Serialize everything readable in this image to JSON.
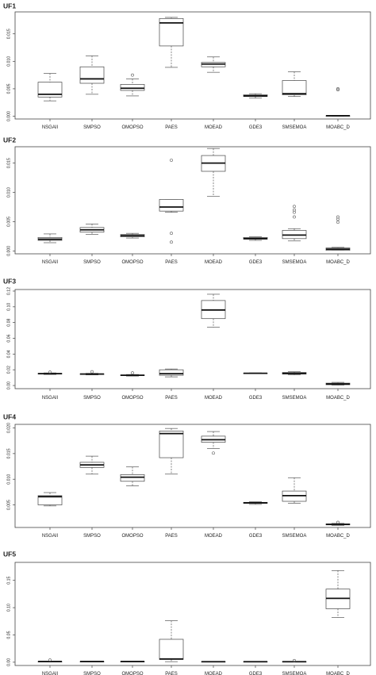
{
  "chart_data": [
    {
      "type": "boxplot",
      "title": "UF1",
      "categories": [
        "NSGAII",
        "SMPSO",
        "OMOPSO",
        "PAES",
        "MOEAD",
        "GDE3",
        "SMSEMOA",
        "MOABC_D"
      ],
      "ylim": [
        -0.0005,
        0.019
      ],
      "yticks": [
        0.0,
        0.005,
        0.01,
        0.015
      ],
      "ytick_labels": [
        "0.000",
        "0.005",
        "0.010",
        "0.015"
      ],
      "boxes": [
        {
          "min": 0.0028,
          "q1": 0.0035,
          "median": 0.004,
          "q3": 0.0062,
          "max": 0.0078,
          "outliers": []
        },
        {
          "min": 0.004,
          "q1": 0.006,
          "median": 0.0068,
          "q3": 0.009,
          "max": 0.011,
          "outliers": []
        },
        {
          "min": 0.0037,
          "q1": 0.0047,
          "median": 0.0051,
          "q3": 0.0058,
          "max": 0.0068,
          "outliers": [
            0.0075
          ]
        },
        {
          "min": 0.0089,
          "q1": 0.0128,
          "median": 0.017,
          "q3": 0.0178,
          "max": 0.018,
          "outliers": []
        },
        {
          "min": 0.008,
          "q1": 0.009,
          "median": 0.0095,
          "q3": 0.0098,
          "max": 0.0108,
          "outliers": []
        },
        {
          "min": 0.0033,
          "q1": 0.0036,
          "median": 0.0037,
          "q3": 0.0039,
          "max": 0.0041,
          "outliers": []
        },
        {
          "min": 0.0036,
          "q1": 0.0039,
          "median": 0.0041,
          "q3": 0.0065,
          "max": 0.0081,
          "outliers": []
        },
        {
          "min": 0.0,
          "q1": 0.0,
          "median": 0.0001,
          "q3": 0.0001,
          "max": 0.0001,
          "outliers": [
            0.0048,
            0.005
          ]
        }
      ]
    },
    {
      "type": "boxplot",
      "title": "UF2",
      "categories": [
        "NSGAII",
        "SMPSO",
        "OMOPSO",
        "PAES",
        "MOEAD",
        "GDE3",
        "SMSEMOA",
        "MOABC_D"
      ],
      "ylim": [
        -0.0005,
        0.0178
      ],
      "yticks": [
        0.0,
        0.005,
        0.01,
        0.015
      ],
      "ytick_labels": [
        "0.000",
        "0.005",
        "0.010",
        "0.015"
      ],
      "boxes": [
        {
          "min": 0.0014,
          "q1": 0.0018,
          "median": 0.002,
          "q3": 0.0023,
          "max": 0.0029,
          "outliers": []
        },
        {
          "min": 0.0028,
          "q1": 0.0032,
          "median": 0.0036,
          "q3": 0.004,
          "max": 0.0046,
          "outliers": []
        },
        {
          "min": 0.0022,
          "q1": 0.0024,
          "median": 0.0026,
          "q3": 0.0028,
          "max": 0.003,
          "outliers": []
        },
        {
          "min": 0.0066,
          "q1": 0.0068,
          "median": 0.0075,
          "q3": 0.0088,
          "max": 0.0088,
          "outliers": [
            0.0155,
            0.003,
            0.0015
          ]
        },
        {
          "min": 0.0093,
          "q1": 0.0136,
          "median": 0.015,
          "q3": 0.0163,
          "max": 0.0175,
          "outliers": []
        },
        {
          "min": 0.0018,
          "q1": 0.002,
          "median": 0.0021,
          "q3": 0.0023,
          "max": 0.0024,
          "outliers": []
        },
        {
          "min": 0.0017,
          "q1": 0.0021,
          "median": 0.0027,
          "q3": 0.0035,
          "max": 0.0038,
          "outliers": [
            0.0058,
            0.0066,
            0.007,
            0.0076
          ]
        },
        {
          "min": 0.0001,
          "q1": 0.0001,
          "median": 0.0003,
          "q3": 0.0005,
          "max": 0.0006,
          "outliers": [
            0.0049,
            0.0054,
            0.0058
          ]
        }
      ]
    },
    {
      "type": "boxplot",
      "title": "UF3",
      "categories": [
        "NSGAII",
        "SMPSO",
        "OMOPSO",
        "PAES",
        "MOEAD",
        "GDE3",
        "SMSEMOA",
        "MOABC_D"
      ],
      "ylim": [
        -0.004,
        0.122
      ],
      "yticks": [
        0.0,
        0.02,
        0.04,
        0.06,
        0.08,
        0.1,
        0.12
      ],
      "ytick_labels": [
        "0.00",
        "0.02",
        "0.04",
        "0.06",
        "0.08",
        "0.10",
        "0.12"
      ],
      "boxes": [
        {
          "min": 0.014,
          "q1": 0.0145,
          "median": 0.015,
          "q3": 0.0155,
          "max": 0.016,
          "outliers": [
            0.017
          ]
        },
        {
          "min": 0.0135,
          "q1": 0.014,
          "median": 0.0145,
          "q3": 0.015,
          "max": 0.0155,
          "outliers": [
            0.0175
          ]
        },
        {
          "min": 0.012,
          "q1": 0.0125,
          "median": 0.013,
          "q3": 0.0135,
          "max": 0.014,
          "outliers": [
            0.016
          ]
        },
        {
          "min": 0.011,
          "q1": 0.013,
          "median": 0.015,
          "q3": 0.02,
          "max": 0.021,
          "outliers": []
        },
        {
          "min": 0.074,
          "q1": 0.085,
          "median": 0.096,
          "q3": 0.108,
          "max": 0.116,
          "outliers": []
        },
        {
          "min": 0.015,
          "q1": 0.0153,
          "median": 0.0155,
          "q3": 0.0157,
          "max": 0.016,
          "outliers": []
        },
        {
          "min": 0.0135,
          "q1": 0.0145,
          "median": 0.0155,
          "q3": 0.0165,
          "max": 0.0175,
          "outliers": []
        },
        {
          "min": 0.0005,
          "q1": 0.001,
          "median": 0.002,
          "q3": 0.003,
          "max": 0.004,
          "outliers": []
        }
      ]
    },
    {
      "type": "boxplot",
      "title": "UF4",
      "categories": [
        "NSGAII",
        "SMPSO",
        "OMOPSO",
        "PAES",
        "MOEAD",
        "GDE3",
        "SMSEMOA",
        "MOABC_D"
      ],
      "ylim": [
        0.0006,
        0.0207
      ],
      "yticks": [
        0.005,
        0.01,
        0.015,
        0.02
      ],
      "ytick_labels": [
        "0.005",
        "0.010",
        "0.015",
        "0.020"
      ],
      "boxes": [
        {
          "min": 0.0048,
          "q1": 0.005,
          "median": 0.0066,
          "q3": 0.0068,
          "max": 0.0074,
          "outliers": []
        },
        {
          "min": 0.011,
          "q1": 0.0123,
          "median": 0.0128,
          "q3": 0.0133,
          "max": 0.0145,
          "outliers": []
        },
        {
          "min": 0.0087,
          "q1": 0.0096,
          "median": 0.0104,
          "q3": 0.0109,
          "max": 0.0124,
          "outliers": []
        },
        {
          "min": 0.011,
          "q1": 0.0142,
          "median": 0.0189,
          "q3": 0.0194,
          "max": 0.0199,
          "outliers": []
        },
        {
          "min": 0.016,
          "q1": 0.0172,
          "median": 0.0177,
          "q3": 0.0184,
          "max": 0.0193,
          "outliers": [
            0.0151
          ]
        },
        {
          "min": 0.0051,
          "q1": 0.0053,
          "median": 0.0054,
          "q3": 0.0055,
          "max": 0.0056,
          "outliers": []
        },
        {
          "min": 0.0053,
          "q1": 0.0057,
          "median": 0.0068,
          "q3": 0.0077,
          "max": 0.0103,
          "outliers": []
        },
        {
          "min": 0.001,
          "q1": 0.0011,
          "median": 0.0012,
          "q3": 0.0013,
          "max": 0.0014,
          "outliers": [
            0.0016
          ]
        }
      ]
    },
    {
      "type": "boxplot",
      "title": "UF5",
      "categories": [
        "NSGAII",
        "SMPSO",
        "OMOPSO",
        "PAES",
        "MOEAD",
        "GDE3",
        "SMSEMOA",
        "MOABC_D"
      ],
      "ylim": [
        -0.006,
        0.183
      ],
      "yticks": [
        0.0,
        0.05,
        0.1,
        0.15
      ],
      "ytick_labels": [
        "0.00",
        "0.05",
        "0.10",
        "0.15"
      ],
      "boxes": [
        {
          "min": 0.001,
          "q1": 0.0011,
          "median": 0.0012,
          "q3": 0.0013,
          "max": 0.0014,
          "outliers": [
            0.004
          ]
        },
        {
          "min": 0.001,
          "q1": 0.0011,
          "median": 0.0012,
          "q3": 0.0013,
          "max": 0.0014,
          "outliers": []
        },
        {
          "min": 0.001,
          "q1": 0.0011,
          "median": 0.0012,
          "q3": 0.0013,
          "max": 0.0014,
          "outliers": []
        },
        {
          "min": 0.001,
          "q1": 0.005,
          "median": 0.006,
          "q3": 0.042,
          "max": 0.076,
          "outliers": []
        },
        {
          "min": 0.0005,
          "q1": 0.0007,
          "median": 0.0009,
          "q3": 0.0011,
          "max": 0.0013,
          "outliers": []
        },
        {
          "min": 0.0005,
          "q1": 0.0007,
          "median": 0.0009,
          "q3": 0.0011,
          "max": 0.0013,
          "outliers": []
        },
        {
          "min": 0.0005,
          "q1": 0.0007,
          "median": 0.0009,
          "q3": 0.0011,
          "max": 0.0013,
          "outliers": [
            0.003
          ]
        },
        {
          "min": 0.082,
          "q1": 0.098,
          "median": 0.117,
          "q3": 0.134,
          "max": 0.168,
          "outliers": []
        }
      ]
    }
  ],
  "colors": {
    "axis": "#444444",
    "box_fill": "#ffffff",
    "whisker": "#555555",
    "median": "#111111",
    "text": "#222222"
  }
}
